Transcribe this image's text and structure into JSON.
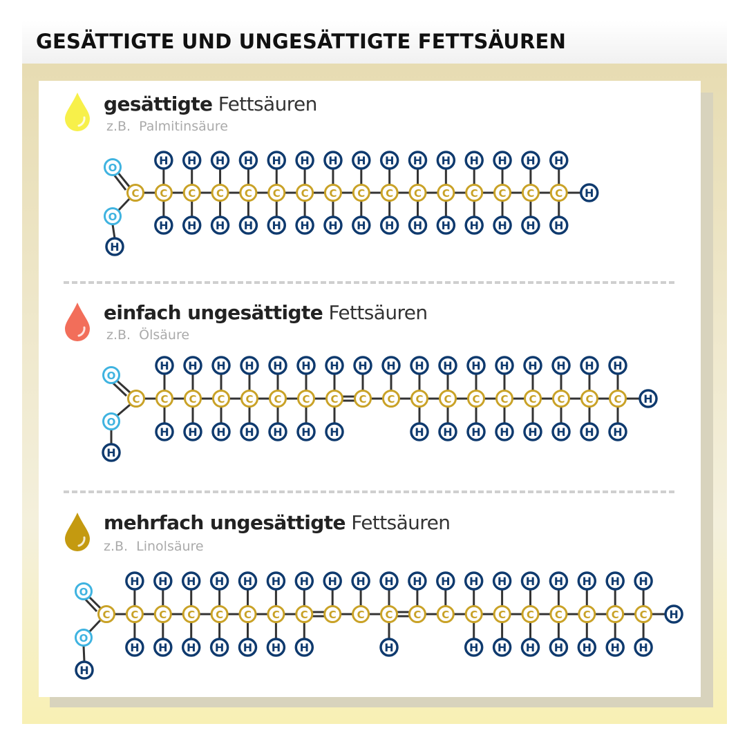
{
  "title": "GESÄTTIGTE UND UNGESÄTTIGTE FETTSÄUREN",
  "colors": {
    "hydrogen": "#0f3a6e",
    "carbon": "#c9a227",
    "oxygen": "#3fb3e0",
    "bond": "#333333",
    "drop_saturated": "#f7f04a",
    "drop_mono": "#f26e5a",
    "drop_poly": "#c49a10"
  },
  "atoms": {
    "H": "H",
    "C": "C",
    "O": "O"
  },
  "sections": [
    {
      "bold": "gesättigte",
      "rest": "Fettsäuren",
      "example_prefix": "z.B.",
      "example": "Palmitinsäure",
      "drop_icon": "drop-icon",
      "molecule": {
        "carbons": 16,
        "double_bonds_after_carbon": [],
        "top_h": [
          1,
          2,
          3,
          4,
          5,
          6,
          7,
          8,
          9,
          10,
          11,
          12,
          13,
          14,
          15
        ],
        "bottom_h": [
          1,
          2,
          3,
          4,
          5,
          6,
          7,
          8,
          9,
          10,
          11,
          12,
          13,
          14,
          15
        ]
      }
    },
    {
      "bold": "einfach ungesättigte",
      "rest": "Fettsäuren",
      "example_prefix": "z.B.",
      "example": "Ölsäure",
      "drop_icon": "drop-icon",
      "molecule": {
        "carbons": 18,
        "double_bonds_after_carbon": [
          8
        ],
        "top_h": [
          1,
          2,
          3,
          4,
          5,
          6,
          7,
          8,
          9,
          10,
          11,
          12,
          13,
          14,
          15,
          16,
          17
        ],
        "bottom_h": [
          1,
          2,
          3,
          4,
          5,
          6,
          7,
          10,
          11,
          12,
          13,
          14,
          15,
          16,
          17
        ]
      }
    },
    {
      "bold": "mehrfach ungesättigte",
      "rest": "Fettsäuren",
      "example_prefix": "z.B.",
      "example": "Linolsäure",
      "drop_icon": "drop-icon",
      "molecule": {
        "carbons": 20,
        "double_bonds_after_carbon": [
          8,
          11
        ],
        "top_h": [
          1,
          2,
          3,
          4,
          5,
          6,
          7,
          8,
          9,
          10,
          11,
          12,
          13,
          14,
          15,
          16,
          17,
          18,
          19
        ],
        "bottom_h": [
          1,
          2,
          3,
          4,
          5,
          6,
          7,
          10,
          13,
          14,
          15,
          16,
          17,
          18,
          19
        ]
      }
    }
  ]
}
